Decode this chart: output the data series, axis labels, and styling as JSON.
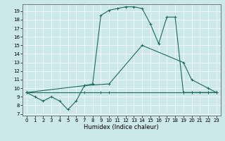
{
  "xlabel": "Humidex (Indice chaleur)",
  "bg_color": "#cce8e8",
  "line_color": "#1a6b5a",
  "xlim": [
    -0.5,
    23.5
  ],
  "ylim": [
    6.8,
    19.8
  ],
  "yticks": [
    7,
    8,
    9,
    10,
    11,
    12,
    13,
    14,
    15,
    16,
    17,
    18,
    19
  ],
  "xticks": [
    0,
    1,
    2,
    3,
    4,
    5,
    6,
    7,
    8,
    9,
    10,
    11,
    12,
    13,
    14,
    15,
    16,
    17,
    18,
    19,
    20,
    21,
    22,
    23
  ],
  "curve1_x": [
    0,
    1,
    2,
    3,
    4,
    5,
    6,
    7,
    8,
    9,
    10,
    11,
    12,
    13,
    14,
    15,
    16,
    17,
    18,
    19,
    20,
    21,
    22,
    23
  ],
  "curve1_y": [
    9.5,
    9.0,
    8.5,
    9.0,
    8.5,
    7.5,
    8.5,
    10.3,
    10.5,
    18.5,
    19.1,
    19.3,
    19.5,
    19.5,
    19.3,
    17.5,
    15.2,
    18.3,
    18.3,
    9.5,
    9.5,
    9.5,
    9.5,
    9.5
  ],
  "curve2_x": [
    0,
    7,
    10,
    14,
    19,
    20,
    22,
    23
  ],
  "curve2_y": [
    9.5,
    10.3,
    10.5,
    15.0,
    13.0,
    11.0,
    10.0,
    9.5
  ],
  "curve3_x": [
    0,
    7,
    9,
    10,
    19,
    20,
    22,
    23
  ],
  "curve3_y": [
    9.5,
    9.5,
    9.5,
    9.5,
    9.5,
    9.5,
    9.5,
    9.5
  ]
}
